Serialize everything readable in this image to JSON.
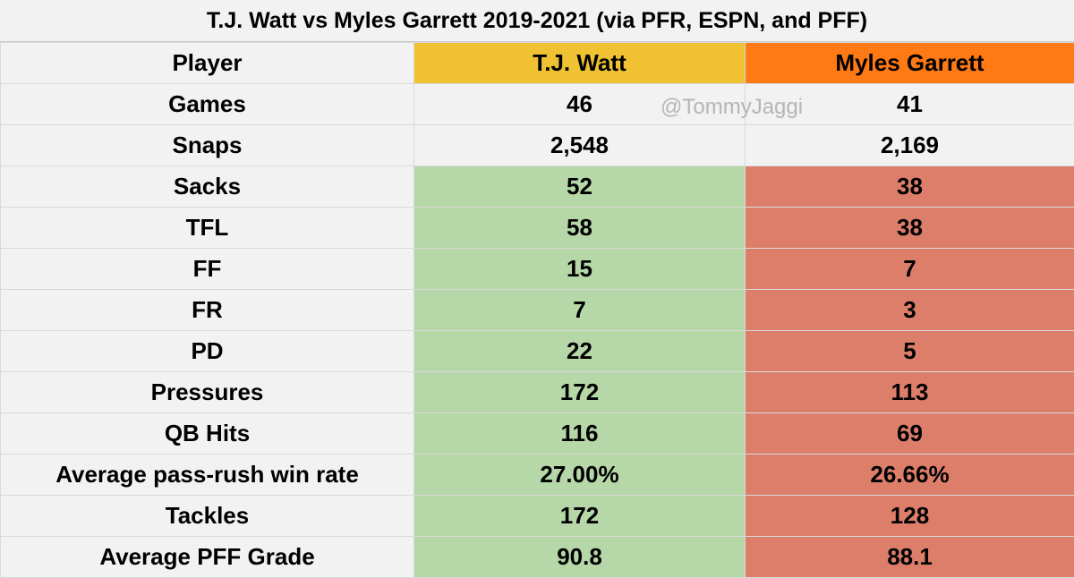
{
  "title": "T.J. Watt vs Myles Garrett 2019-2021 (via PFR, ESPN, and PFF)",
  "watermark": "@TommyJaggi",
  "colors": {
    "watt_header": "#f0c233",
    "garrett_header": "#ff7a14",
    "better": "#b6d7a8",
    "worse": "#dd7e6b",
    "neutral": "#f2f2f2"
  },
  "table": {
    "headers": [
      "Player",
      "T.J. Watt",
      "Myles Garrett"
    ],
    "rows": [
      {
        "stat": "Games",
        "watt": "46",
        "garrett": "41"
      },
      {
        "stat": "Snaps",
        "watt": "2,548",
        "garrett": "2,169"
      },
      {
        "stat": "Sacks",
        "watt": "52",
        "garrett": "38"
      },
      {
        "stat": "TFL",
        "watt": "58",
        "garrett": "38"
      },
      {
        "stat": "FF",
        "watt": "15",
        "garrett": "7"
      },
      {
        "stat": "FR",
        "watt": "7",
        "garrett": "3"
      },
      {
        "stat": "PD",
        "watt": "22",
        "garrett": "5"
      },
      {
        "stat": "Pressures",
        "watt": "172",
        "garrett": "113"
      },
      {
        "stat": "QB Hits",
        "watt": "116",
        "garrett": "69"
      },
      {
        "stat": "Average pass-rush win rate",
        "watt": "27.00%",
        "garrett": "26.66%"
      },
      {
        "stat": "Tackles",
        "watt": "172",
        "garrett": "128"
      },
      {
        "stat": "Average PFF Grade",
        "watt": "90.8",
        "garrett": "88.1"
      }
    ]
  }
}
